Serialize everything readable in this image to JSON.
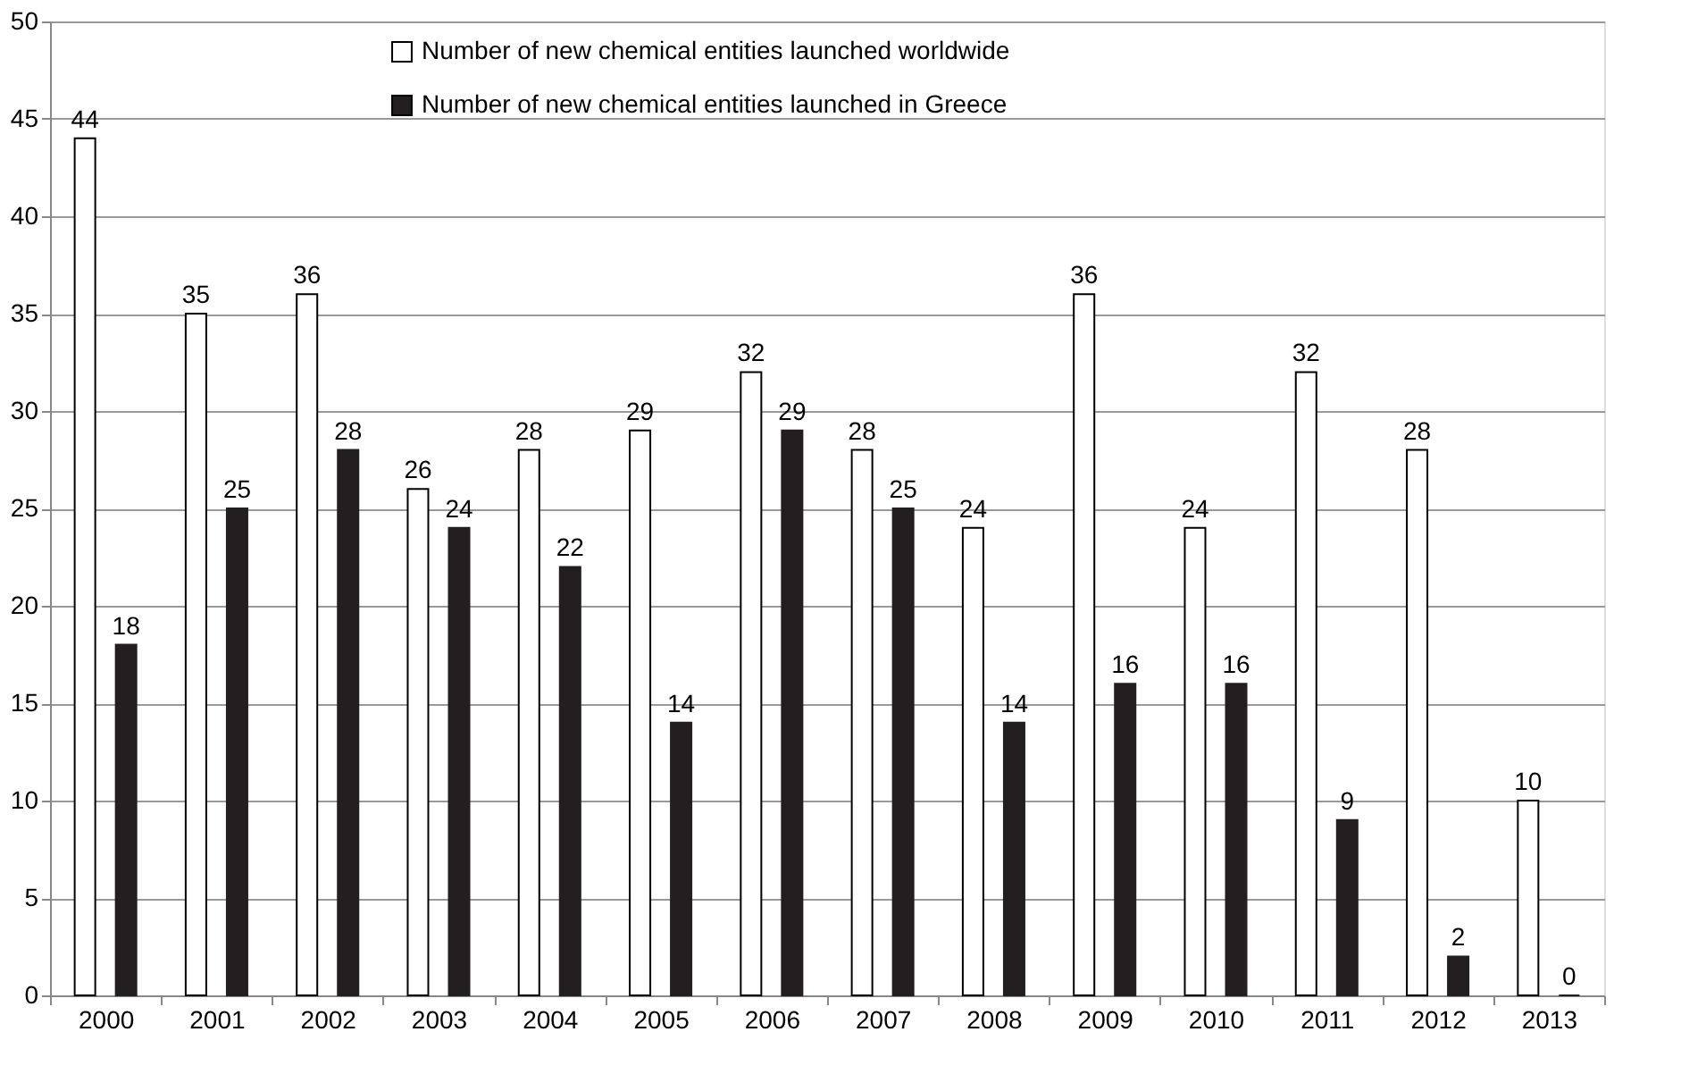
{
  "chart_data": {
    "type": "bar",
    "categories": [
      "2000",
      "2001",
      "2002",
      "2003",
      "2004",
      "2005",
      "2006",
      "2007",
      "2008",
      "2009",
      "2010",
      "2011",
      "2012",
      "2013"
    ],
    "series": [
      {
        "name": "Number of new chemical entities launched worldwide",
        "color": "#ffffff",
        "values": [
          44,
          35,
          36,
          26,
          28,
          29,
          32,
          28,
          24,
          36,
          24,
          32,
          28,
          10
        ]
      },
      {
        "name": "Number of new chemical entities launched in Greece",
        "color": "#231f20",
        "values": [
          18,
          25,
          28,
          24,
          22,
          14,
          29,
          25,
          14,
          16,
          16,
          9,
          2,
          0
        ]
      }
    ],
    "ylim": [
      0,
      50
    ],
    "yticks": [
      0,
      5,
      10,
      15,
      20,
      25,
      30,
      35,
      40,
      45,
      50
    ],
    "grid": "y",
    "legend": "top",
    "data_labels": true
  }
}
